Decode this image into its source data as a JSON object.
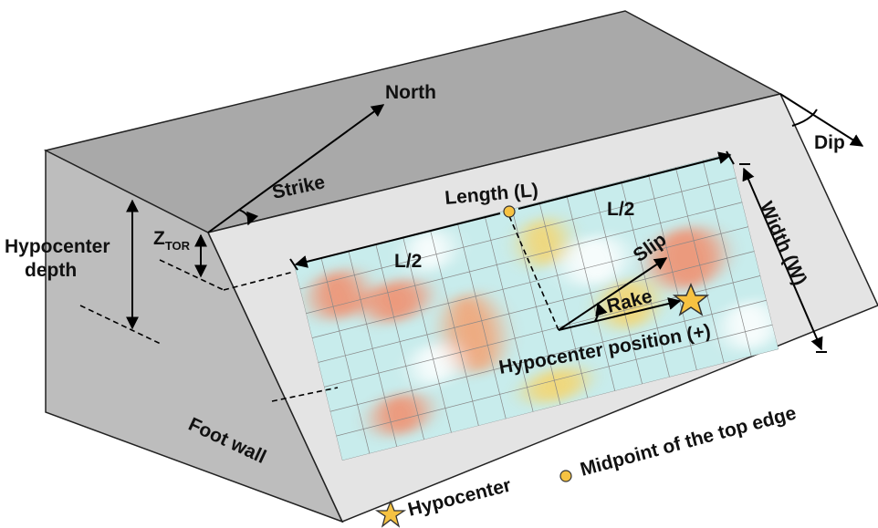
{
  "labels": {
    "north": "North",
    "strike": "Strike",
    "dip": "Dip",
    "length": "Length (L)",
    "half_left": "L/2",
    "half_right": "L/2",
    "width": "Width (W)",
    "hypocenter_depth": [
      "Hypocenter",
      "depth"
    ],
    "ztor": {
      "main": "Z",
      "sub": "TOR"
    },
    "slip": "Slip",
    "rake": "Rake",
    "hypocenter_position": "Hypocenter position (+)",
    "foot_wall": "Foot wall"
  },
  "legend": {
    "hypocenter": "Hypocenter",
    "midpoint": "Midpoint of the top edge"
  }
}
